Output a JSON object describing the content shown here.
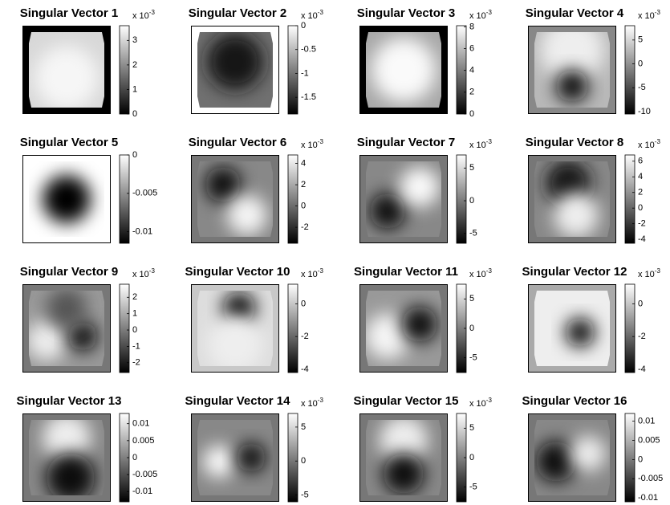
{
  "chart_data": [
    {
      "type": "image",
      "title": "Singular Vector 1",
      "multiplier": "x 10",
      "multiplier_exponent": "-3",
      "ylim": [
        0,
        3.6
      ],
      "yticks": [
        0,
        1,
        2,
        3
      ]
    },
    {
      "type": "image",
      "title": "Singular Vector 2",
      "multiplier": "x 10",
      "multiplier_exponent": "-3",
      "ylim": [
        -1.85,
        0
      ],
      "yticks": [
        -1.5,
        -1,
        -0.5,
        0
      ]
    },
    {
      "type": "image",
      "title": "Singular Vector 3",
      "multiplier": "x 10",
      "multiplier_exponent": "-3",
      "ylim": [
        0,
        8.1
      ],
      "yticks": [
        0,
        2,
        4,
        6,
        8
      ]
    },
    {
      "type": "image",
      "title": "Singular Vector 4",
      "multiplier": "x 10",
      "multiplier_exponent": "-3",
      "ylim": [
        -10.5,
        8
      ],
      "yticks": [
        -10,
        -5,
        0,
        5
      ]
    },
    {
      "type": "image",
      "title": "Singular Vector 5",
      "ylim": [
        -0.0115,
        0
      ],
      "yticks": [
        -0.01,
        -0.005,
        0
      ]
    },
    {
      "type": "image",
      "title": "Singular Vector 6",
      "multiplier": "x 10",
      "multiplier_exponent": "-3",
      "ylim": [
        -3.5,
        4.8
      ],
      "yticks": [
        -2,
        0,
        2,
        4
      ]
    },
    {
      "type": "image",
      "title": "Singular Vector 7",
      "multiplier": "x 10",
      "multiplier_exponent": "-3",
      "ylim": [
        -6.5,
        7
      ],
      "yticks": [
        -5,
        0,
        5
      ]
    },
    {
      "type": "image",
      "title": "Singular Vector 8",
      "multiplier": "x 10",
      "multiplier_exponent": "-3",
      "ylim": [
        -4.5,
        6.8
      ],
      "yticks": [
        -4,
        -2,
        0,
        2,
        4,
        6
      ]
    },
    {
      "type": "image",
      "title": "Singular Vector 9",
      "multiplier": "x 10",
      "multiplier_exponent": "-3",
      "ylim": [
        -2.6,
        2.8
      ],
      "yticks": [
        -2,
        -1,
        0,
        1,
        2
      ]
    },
    {
      "type": "image",
      "title": "Singular Vector 10",
      "multiplier": "x 10",
      "multiplier_exponent": "-3",
      "ylim": [
        -4.2,
        1.2
      ],
      "yticks": [
        -4,
        -2,
        0
      ]
    },
    {
      "type": "image",
      "title": "Singular Vector 11",
      "multiplier": "x 10",
      "multiplier_exponent": "-3",
      "ylim": [
        -7.5,
        7.5
      ],
      "yticks": [
        -5,
        0,
        5
      ]
    },
    {
      "type": "image",
      "title": "Singular Vector 12",
      "multiplier": "x 10",
      "multiplier_exponent": "-3",
      "ylim": [
        -4.2,
        1.2
      ],
      "yticks": [
        -4,
        -2,
        0
      ]
    },
    {
      "type": "image",
      "title": "Singular Vector 13",
      "ylim": [
        -0.013,
        0.013
      ],
      "yticks": [
        -0.01,
        -0.005,
        0,
        0.005,
        0.01
      ]
    },
    {
      "type": "image",
      "title": "Singular Vector 14",
      "multiplier": "x 10",
      "multiplier_exponent": "-3",
      "ylim": [
        -6,
        7
      ],
      "yticks": [
        -5,
        0,
        5
      ]
    },
    {
      "type": "image",
      "title": "Singular Vector 15",
      "multiplier": "x 10",
      "multiplier_exponent": "-3",
      "ylim": [
        -7.5,
        7.5
      ],
      "yticks": [
        -5,
        0,
        5
      ]
    },
    {
      "type": "image",
      "title": "Singular Vector 16",
      "ylim": [
        -0.011,
        0.012
      ],
      "yticks": [
        -0.01,
        -0.005,
        0,
        0.005,
        0.01
      ]
    }
  ]
}
